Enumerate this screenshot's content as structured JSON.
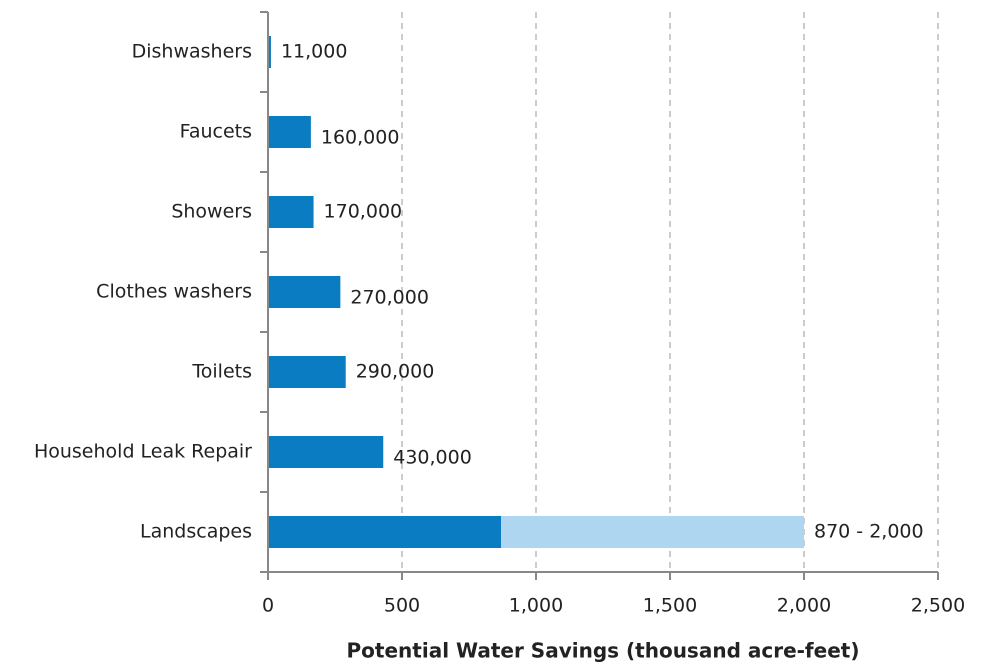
{
  "chart_data": {
    "type": "bar",
    "orientation": "horizontal",
    "x_label": "Potential Water Savings (thousand acre-feet)",
    "categories": [
      "Dishwashers",
      "Faucets",
      "Showers",
      "Clothes washers",
      "Toilets",
      "Household Leak Repair",
      "Landscapes"
    ],
    "series": [
      {
        "color": "#0a7dc2",
        "values": [
          11,
          160,
          170,
          270,
          290,
          430,
          870
        ],
        "value_labels": [
          "11,000",
          "160,000",
          "170,000",
          "270,000",
          "290,000",
          "430,000",
          "870 - 2,000"
        ]
      },
      {
        "color": "#aed6f1",
        "values": [
          null,
          null,
          null,
          null,
          null,
          null,
          1130
        ]
      }
    ],
    "stacked": true,
    "xlim": [
      0,
      2500
    ],
    "xticks": [
      0,
      500,
      {
        "value": 1000,
        "label": "1,000"
      },
      {
        "value": 1500,
        "label": "1,500"
      },
      {
        "value": 2000,
        "label": "2,000"
      },
      {
        "value": 2500,
        "label": "2,500"
      }
    ],
    "grid": true
  }
}
